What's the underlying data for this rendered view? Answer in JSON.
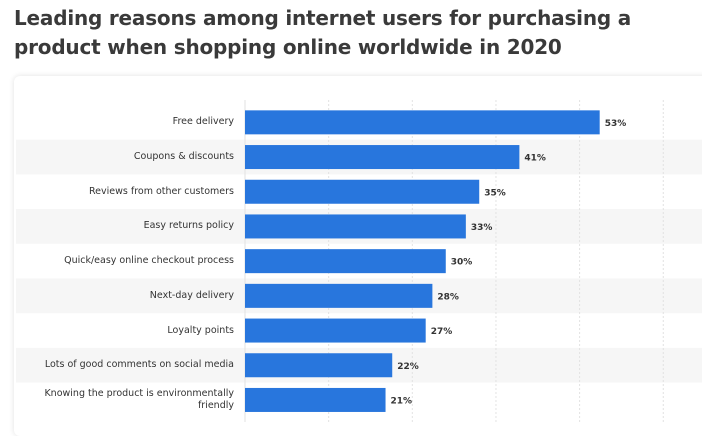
{
  "chart_data": {
    "type": "bar",
    "orientation": "horizontal",
    "title": "Leading reasons among internet users for purchasing a product when shopping online worldwide in 2020",
    "categories": [
      "Free delivery",
      "Coupons & discounts",
      "Reviews from other customers",
      "Easy returns policy",
      "Quick/easy online checkout process",
      "Next-day delivery",
      "Loyalty points",
      "Lots of good comments on social media",
      "Knowing the product is environmentally friendly"
    ],
    "values": [
      53,
      41,
      35,
      33,
      30,
      28,
      27,
      22,
      21
    ],
    "value_labels": [
      "53%",
      "41%",
      "35%",
      "33%",
      "30%",
      "28%",
      "27%",
      "22%",
      "21%"
    ],
    "color": "#2876dd",
    "xlim": [
      0,
      65
    ],
    "xticks": [
      0,
      12.5,
      25,
      37.5,
      50,
      62.5
    ],
    "grid": true
  }
}
